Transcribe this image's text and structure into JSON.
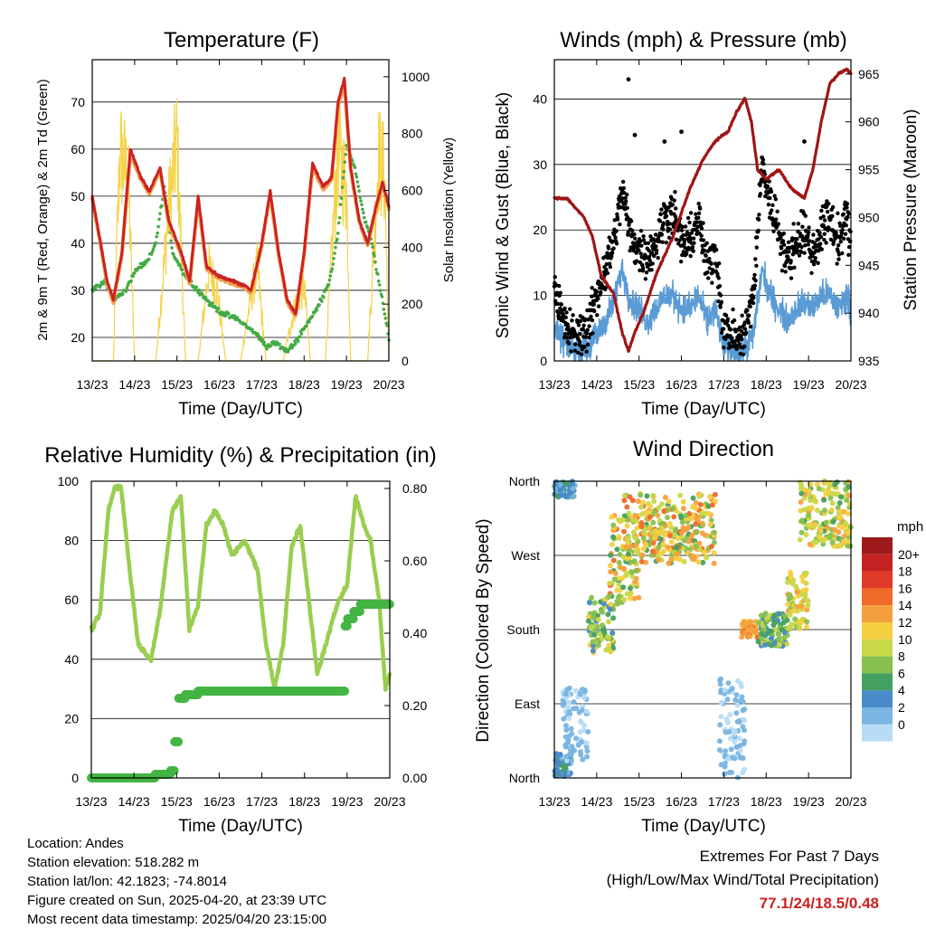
{
  "x_ticks": [
    "13/23",
    "14/23",
    "15/23",
    "16/23",
    "17/23",
    "18/23",
    "19/23",
    "20/23"
  ],
  "x_label": "Time (Day/UTC)",
  "colors": {
    "red": "#cc2222",
    "orange": "#f0a050",
    "green": "#44aa44",
    "yellow": "#f5d34a",
    "black": "#000000",
    "blue": "#5a9bd5",
    "maroon": "#a01515",
    "rh": "#9acd50",
    "precip": "#44b444"
  },
  "temperature": {
    "title": "Temperature (F)",
    "ylabel_left": "2m & 9m T (Red, Orange) & 2m Td (Green)",
    "ylabel_right": "Solar Insolation (Yellow)",
    "left_ticks": [
      "20",
      "30",
      "40",
      "50",
      "60",
      "70"
    ],
    "right_ticks": [
      "0",
      "200",
      "400",
      "600",
      "800",
      "1000"
    ]
  },
  "winds": {
    "title": "Winds (mph) & Pressure (mb)",
    "ylabel_left": "Sonic Wind & Gust (Blue, Black)",
    "ylabel_right": "Station Pressure (Maroon)",
    "left_ticks": [
      "0",
      "10",
      "20",
      "30",
      "40"
    ],
    "right_ticks": [
      "935",
      "940",
      "945",
      "950",
      "955",
      "960",
      "965"
    ]
  },
  "humidity": {
    "title": "Relative Humidity (%) & Precipitation (in)",
    "ylabel_left": "Percent & Total Rainfall",
    "left_ticks": [
      "0",
      "20",
      "40",
      "60",
      "80",
      "100"
    ],
    "right_ticks": [
      "0.00",
      "0.20",
      "0.40",
      "0.60",
      "0.80"
    ]
  },
  "direction": {
    "title": "Wind Direction",
    "ylabel": "Direction (Colored By Speed)",
    "dir_ticks": [
      "North",
      "East",
      "South",
      "West",
      "North"
    ],
    "legend_title": "mph",
    "legend_labels": [
      "20+",
      "18",
      "16",
      "14",
      "12",
      "10",
      "8",
      "6",
      "4",
      "2",
      "0"
    ],
    "legend_colors": [
      "#9e1a1a",
      "#c42222",
      "#e03a2a",
      "#f06a2a",
      "#f5a040",
      "#f5d040",
      "#c8d848",
      "#88c050",
      "#44a060",
      "#4a8ac8",
      "#7ab4e0",
      "#b8dcf5"
    ]
  },
  "info": {
    "location": "Location: Andes",
    "elevation": "Station elevation: 518.282 m",
    "latlon": "Station lat/lon: 42.1823; -74.8014",
    "created": "Figure created on Sun, 2025-04-20, at 23:39 UTC",
    "recent": "Most recent data timestamp: 2025/04/20 23:15:00"
  },
  "extremes": {
    "line1": "Extremes For Past 7 Days",
    "line2": "(High/Low/Max Wind/Total Precipitation)",
    "value": "77.1/24/18.5/0.48"
  },
  "chart_data": [
    {
      "type": "line",
      "title": "Temperature (F)",
      "xlabel": "Time (Day/UTC)",
      "ylabel": "2m & 9m T (Red, Orange) & 2m Td (Green)",
      "ylabel_right": "Solar Insolation (Yellow)",
      "ylim": [
        15,
        79
      ],
      "ylim_right": [
        0,
        1060
      ],
      "xlim": [
        0,
        7
      ],
      "series": [
        {
          "name": "2m T",
          "axis": "left",
          "x": [
            0,
            0.2,
            0.35,
            0.5,
            0.7,
            0.9,
            1.15,
            1.35,
            1.6,
            1.8,
            2.1,
            2.3,
            2.5,
            2.7,
            3.0,
            3.3,
            3.6,
            3.75,
            4.0,
            4.2,
            4.4,
            4.6,
            4.8,
            5.0,
            5.2,
            5.45,
            5.65,
            5.8,
            5.95,
            6.1,
            6.3,
            6.5,
            6.7,
            6.85,
            7.0
          ],
          "y": [
            50,
            40,
            32,
            28,
            38,
            60,
            54,
            51,
            56,
            45,
            38,
            32,
            50,
            35,
            33,
            32,
            31,
            30,
            40,
            51,
            38,
            28,
            25,
            38,
            57,
            52,
            54,
            70,
            75,
            56,
            45,
            40,
            48,
            53,
            48
          ]
        },
        {
          "name": "9m T",
          "axis": "left",
          "x": [
            0,
            0.2,
            0.35,
            0.5,
            0.7,
            0.9,
            1.15,
            1.35,
            1.6,
            1.8,
            2.1,
            2.3,
            2.5,
            2.7,
            3.0,
            3.3,
            3.6,
            3.75,
            4.0,
            4.2,
            4.4,
            4.6,
            4.8,
            5.0,
            5.2,
            5.45,
            5.65,
            5.8,
            5.95,
            6.1,
            6.3,
            6.5,
            6.7,
            6.85,
            7.0
          ],
          "y": [
            49.5,
            39.5,
            31.5,
            27.5,
            37.5,
            59,
            53.5,
            50.5,
            55.5,
            44.5,
            37.5,
            31.5,
            49,
            34.5,
            32.5,
            31.5,
            30.5,
            29.5,
            39.5,
            50.5,
            37.5,
            27.5,
            24.5,
            37.5,
            56,
            51.5,
            53.5,
            69,
            74,
            55.5,
            44.5,
            39.5,
            47.5,
            52.5,
            47.5
          ]
        },
        {
          "name": "2m Td",
          "axis": "left",
          "x": [
            0,
            0.3,
            0.5,
            0.8,
            1.0,
            1.3,
            1.5,
            1.7,
            1.9,
            2.2,
            2.5,
            2.8,
            3.1,
            3.4,
            3.7,
            3.95,
            4.1,
            4.3,
            4.6,
            4.8,
            5.0,
            5.3,
            5.6,
            5.8,
            6.0,
            6.2,
            6.4,
            6.6,
            6.8,
            7.0
          ],
          "y": [
            30,
            32,
            28,
            30,
            34,
            36,
            40,
            52,
            38,
            33,
            30,
            27,
            25,
            24,
            22,
            20,
            18,
            19,
            17,
            19,
            22,
            26,
            32,
            42,
            61,
            56,
            46,
            40,
            30,
            20
          ]
        },
        {
          "name": "Solar Insolation",
          "axis": "right",
          "x": [
            0,
            0.5,
            0.65,
            0.85,
            1.0,
            1.5,
            1.8,
            2.0,
            2.2,
            2.5,
            2.75,
            2.95,
            3.15,
            3.5,
            3.75,
            3.9,
            4.1,
            4.5,
            4.8,
            5.0,
            5.15,
            5.5,
            5.8,
            6.0,
            6.1,
            6.5,
            6.75,
            6.9,
            7.0
          ],
          "y": [
            0,
            0,
            950,
            820,
            0,
            0,
            680,
            1000,
            0,
            0,
            420,
            320,
            0,
            0,
            300,
            420,
            0,
            0,
            260,
            340,
            0,
            0,
            950,
            780,
            0,
            0,
            920,
            840,
            0
          ]
        }
      ]
    },
    {
      "type": "scatter",
      "title": "Winds (mph) & Pressure (mb)",
      "xlabel": "Time (Day/UTC)",
      "ylabel": "Sonic Wind & Gust (Blue, Black)",
      "ylabel_right": "Station Pressure (Maroon)",
      "ylim": [
        0,
        46
      ],
      "ylim_right": [
        935,
        966.5
      ],
      "xlim": [
        0,
        7
      ],
      "series": [
        {
          "name": "Sonic Wind",
          "axis": "left",
          "x": [
            0,
            0.2,
            0.4,
            0.6,
            0.8,
            1.0,
            1.2,
            1.4,
            1.6,
            1.8,
            2.0,
            2.2,
            2.4,
            2.6,
            2.8,
            3.0,
            3.2,
            3.4,
            3.6,
            3.8,
            4.0,
            4.2,
            4.4,
            4.5,
            4.7,
            4.9,
            5.1,
            5.3,
            5.5,
            5.7,
            5.9,
            6.1,
            6.3,
            6.5,
            6.7,
            6.9,
            7.0
          ],
          "y": [
            5,
            3,
            2,
            2,
            2,
            4,
            6,
            9,
            14,
            9,
            8,
            6,
            8,
            10,
            10,
            8,
            8,
            10,
            6,
            8,
            2,
            2,
            1,
            2,
            4,
            14,
            10,
            8,
            6,
            8,
            9,
            8,
            10,
            10,
            8,
            10,
            8
          ]
        },
        {
          "name": "Gust",
          "axis": "left",
          "x": [
            0,
            0.2,
            0.4,
            0.6,
            0.8,
            1.0,
            1.2,
            1.4,
            1.6,
            1.8,
            2.0,
            2.2,
            2.4,
            2.6,
            2.8,
            3.0,
            3.2,
            3.4,
            3.6,
            3.8,
            4.0,
            4.2,
            4.4,
            4.5,
            4.7,
            4.9,
            5.1,
            5.3,
            5.5,
            5.7,
            5.9,
            6.1,
            6.3,
            6.5,
            6.7,
            6.9,
            7.0
          ],
          "y": [
            12,
            6,
            4,
            4,
            5,
            10,
            14,
            18,
            26,
            19,
            17,
            16,
            18,
            22,
            23,
            18,
            18,
            22,
            14,
            17,
            5,
            4,
            3,
            5,
            10,
            30,
            24,
            20,
            15,
            18,
            20,
            16,
            20,
            22,
            18,
            22,
            18
          ]
        },
        {
          "name": "Station Pressure",
          "axis": "right",
          "x": [
            0,
            0.3,
            0.5,
            0.7,
            0.9,
            1.1,
            1.4,
            1.6,
            1.75,
            1.9,
            2.1,
            2.4,
            2.8,
            3.2,
            3.5,
            3.8,
            4.1,
            4.3,
            4.5,
            4.65,
            4.8,
            5.0,
            5.3,
            5.6,
            5.9,
            6.1,
            6.3,
            6.5,
            6.7,
            6.9,
            7.0
          ],
          "y": [
            952,
            952,
            951,
            950,
            948,
            944,
            942,
            938,
            936,
            938,
            940,
            944,
            948,
            953,
            956,
            958,
            959,
            961,
            962.5,
            960,
            955,
            954,
            955,
            953,
            952,
            955,
            960,
            964,
            965,
            965.5,
            965
          ]
        }
      ]
    },
    {
      "type": "line",
      "title": "Relative Humidity (%) & Precipitation (in)",
      "xlabel": "Time (Day/UTC)",
      "ylabel": "Percent & Total Rainfall",
      "ylim": [
        0,
        100
      ],
      "ylim_right": [
        0,
        0.82
      ],
      "xlim": [
        0,
        7
      ],
      "series": [
        {
          "name": "Relative Humidity",
          "axis": "left",
          "x": [
            0,
            0.2,
            0.4,
            0.55,
            0.7,
            0.9,
            1.1,
            1.4,
            1.6,
            1.9,
            2.1,
            2.3,
            2.5,
            2.7,
            2.9,
            3.1,
            3.3,
            3.6,
            3.9,
            4.1,
            4.3,
            4.5,
            4.7,
            4.9,
            5.1,
            5.3,
            5.6,
            5.8,
            6.0,
            6.2,
            6.4,
            6.55,
            6.75,
            6.9,
            7.0
          ],
          "y": [
            50,
            55,
            90,
            98,
            98,
            70,
            45,
            40,
            55,
            90,
            95,
            50,
            58,
            85,
            90,
            85,
            75,
            80,
            70,
            45,
            30,
            45,
            78,
            85,
            60,
            35,
            50,
            60,
            65,
            95,
            85,
            80,
            60,
            30,
            35
          ]
        },
        {
          "name": "Total Precipitation",
          "axis": "right",
          "x": [
            0,
            1.0,
            1.5,
            1.85,
            1.95,
            2.05,
            2.2,
            2.5,
            3.0,
            4.0,
            5.0,
            5.9,
            5.95,
            6.0,
            6.15,
            6.3,
            6.5,
            7.0
          ],
          "y": [
            0,
            0,
            0.01,
            0.02,
            0.1,
            0.22,
            0.23,
            0.24,
            0.24,
            0.24,
            0.24,
            0.24,
            0.42,
            0.44,
            0.46,
            0.48,
            0.48,
            0.48
          ]
        }
      ]
    },
    {
      "type": "scatter",
      "title": "Wind Direction",
      "xlabel": "Time (Day/UTC)",
      "ylabel": "Direction (Colored By Speed)",
      "ylim": [
        0,
        360
      ],
      "xlim": [
        0,
        7
      ],
      "y_ticks": [
        "North",
        "East",
        "South",
        "West",
        "North"
      ],
      "colorbar": {
        "label": "mph",
        "ticks": [
          "20+",
          "18",
          "16",
          "14",
          "12",
          "10",
          "8",
          "6",
          "4",
          "2",
          "0"
        ]
      },
      "clusters": [
        {
          "x": [
            0.0,
            0.5
          ],
          "dir": [
            340,
            360
          ],
          "speed": [
            2,
            6
          ]
        },
        {
          "x": [
            0.0,
            0.4
          ],
          "dir": [
            0,
            30
          ],
          "speed": [
            2,
            6
          ]
        },
        {
          "x": [
            0.2,
            0.8
          ],
          "dir": [
            20,
            110
          ],
          "speed": [
            0,
            3
          ]
        },
        {
          "x": [
            0.8,
            1.4
          ],
          "dir": [
            150,
            220
          ],
          "speed": [
            4,
            12
          ]
        },
        {
          "x": [
            1.3,
            2.0
          ],
          "dir": [
            210,
            320
          ],
          "speed": [
            6,
            16
          ]
        },
        {
          "x": [
            1.6,
            3.8
          ],
          "dir": [
            260,
            345
          ],
          "speed": [
            6,
            16
          ]
        },
        {
          "x": [
            3.9,
            4.5
          ],
          "dir": [
            0,
            120
          ],
          "speed": [
            0,
            3
          ]
        },
        {
          "x": [
            4.4,
            4.8
          ],
          "dir": [
            170,
            190
          ],
          "speed": [
            12,
            16
          ]
        },
        {
          "x": [
            4.8,
            5.5
          ],
          "dir": [
            160,
            200
          ],
          "speed": [
            4,
            10
          ]
        },
        {
          "x": [
            5.5,
            6.0
          ],
          "dir": [
            180,
            250
          ],
          "speed": [
            8,
            14
          ]
        },
        {
          "x": [
            5.8,
            7.0
          ],
          "dir": [
            280,
            360
          ],
          "speed": [
            6,
            14
          ]
        }
      ]
    }
  ]
}
